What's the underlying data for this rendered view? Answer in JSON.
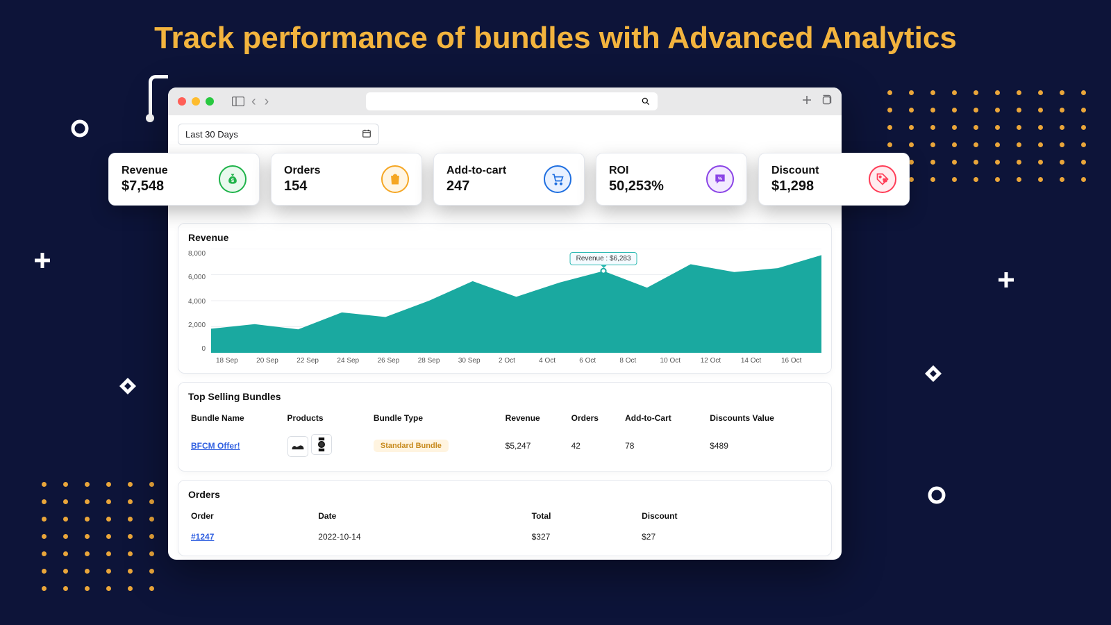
{
  "page": {
    "headline": "Track performance of bundles with Advanced Analytics",
    "background_color": "#0d1439",
    "headline_color": "#f3b43e"
  },
  "datepicker": {
    "label": "Last 30 Days"
  },
  "kpis": [
    {
      "label": "Revenue",
      "value": "$7,548",
      "icon": "money-bag",
      "ring": "#1fb34a",
      "tint": "#e9f9ee"
    },
    {
      "label": "Orders",
      "value": "154",
      "icon": "shopping-bag",
      "ring": "#f5a623",
      "tint": "#fff5e3"
    },
    {
      "label": "Add-to-cart",
      "value": "247",
      "icon": "cart",
      "ring": "#1f6fe0",
      "tint": "#e8f1ff"
    },
    {
      "label": "ROI",
      "value": "50,253%",
      "icon": "percent-bubble",
      "ring": "#8a43e6",
      "tint": "#f3eaff"
    },
    {
      "label": "Discount",
      "value": "$1,298",
      "icon": "tag",
      "ring": "#ff3d57",
      "tint": "#ffecef"
    }
  ],
  "revenue_chart": {
    "title": "Revenue",
    "type": "area",
    "fill_color": "#1aa9a0",
    "grid_color": "#eceef2",
    "text_color": "#555555",
    "ylim": [
      0,
      8000
    ],
    "ytick_step": 2000,
    "yticks": [
      "8,000",
      "6,000",
      "4,000",
      "2,000",
      "0"
    ],
    "x_labels": [
      "18 Sep",
      "20 Sep",
      "22 Sep",
      "24 Sep",
      "26 Sep",
      "28 Sep",
      "30 Sep",
      "2  Oct",
      "4 Oct",
      "6 Oct",
      "8 Oct",
      "10  Oct",
      "12 Oct",
      "14  Oct",
      "16  Oct"
    ],
    "values": [
      1850,
      2200,
      1800,
      3100,
      2750,
      4000,
      5500,
      4300,
      5400,
      6283,
      5000,
      6800,
      6200,
      6500,
      7500
    ],
    "tooltip": {
      "index": 9,
      "label": "Revenue : $6,283"
    }
  },
  "top_bundles": {
    "title": "Top Selling Bundles",
    "columns": [
      "Bundle Name",
      "Products",
      "Bundle Type",
      "Revenue",
      "Orders",
      "Add-to-Cart",
      "Discounts Value"
    ],
    "rows": [
      {
        "name": "BFCM Offer!",
        "product_icons": [
          "shoe",
          "watch"
        ],
        "type": "Standard Bundle",
        "revenue": "$5,247",
        "orders": "42",
        "addtocart": "78",
        "discounts": "$489"
      }
    ]
  },
  "orders": {
    "title": "Orders",
    "columns": [
      "Order",
      "Date",
      "Total",
      "Discount"
    ],
    "rows": [
      {
        "order": "#1247",
        "date": "2022-10-14",
        "total": "$327",
        "discount": "$27"
      }
    ]
  },
  "decor": {
    "dot_color_orange": "#eaa63a",
    "dot_color_white": "#ffffff"
  }
}
